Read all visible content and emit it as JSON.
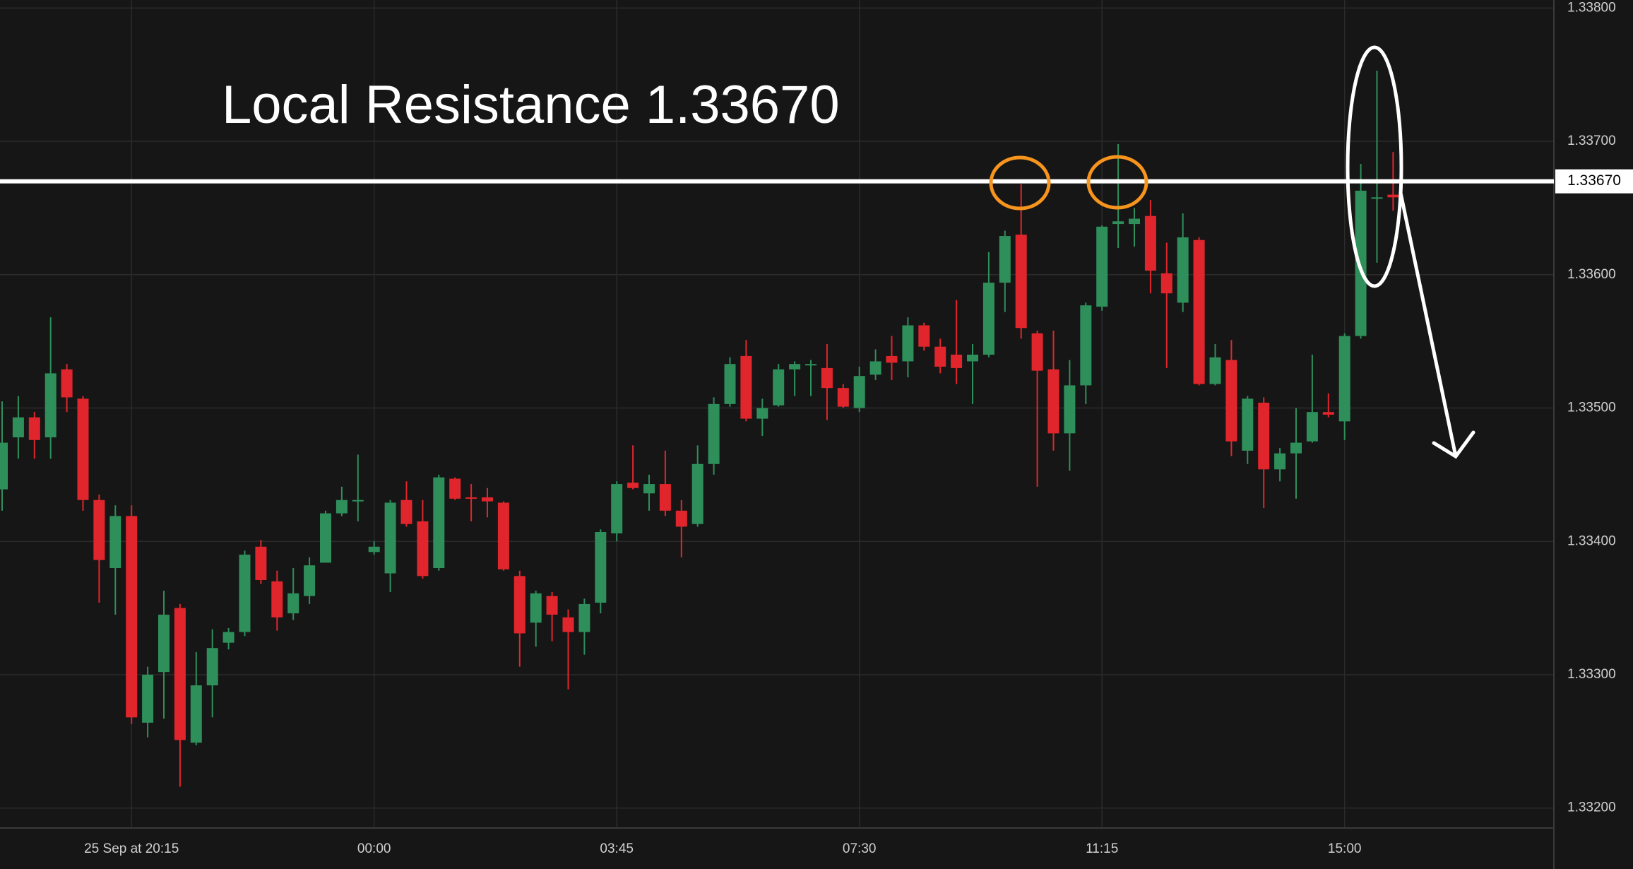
{
  "chart_data": {
    "type": "candlestick",
    "annotation": "Local Resistance 1.33670",
    "resistance": {
      "value": 1.3367,
      "label": "1.33670"
    },
    "categories": [
      null,
      null,
      null,
      null,
      null,
      null,
      null,
      null,
      "25 Sep at 20:15",
      null,
      null,
      null,
      null,
      null,
      null,
      null,
      null,
      null,
      null,
      null,
      null,
      null,
      null,
      "00:00",
      null,
      null,
      null,
      null,
      null,
      null,
      null,
      null,
      null,
      null,
      null,
      null,
      null,
      null,
      "03:45",
      null,
      null,
      null,
      null,
      null,
      null,
      null,
      null,
      null,
      null,
      null,
      null,
      null,
      null,
      "07:30",
      null,
      null,
      null,
      null,
      null,
      null,
      null,
      null,
      null,
      null,
      null,
      null,
      null,
      null,
      "11:15",
      null,
      null,
      null,
      null,
      null,
      null,
      null,
      null,
      null,
      null,
      null,
      null,
      null,
      null,
      "15:00",
      null,
      null,
      null
    ],
    "open": [
      1.33439,
      1.33478,
      1.33493,
      1.33478,
      1.33529,
      1.33507,
      1.33431,
      1.3338,
      1.33419,
      1.33264,
      1.33302,
      1.3335,
      1.33249,
      1.33292,
      1.33324,
      1.33332,
      1.33396,
      1.3337,
      1.33346,
      1.33359,
      1.33384,
      1.33421,
      1.3343,
      1.33392,
      1.33376,
      1.33431,
      1.33415,
      1.3338,
      1.33447,
      1.33433,
      1.33433,
      1.33429,
      1.33374,
      1.33339,
      1.33359,
      1.33343,
      1.33332,
      1.33354,
      1.33406,
      1.33444,
      1.33436,
      1.33443,
      1.33423,
      1.33413,
      1.33458,
      1.33503,
      1.33539,
      1.33492,
      1.33502,
      1.33529,
      1.33532,
      1.3353,
      1.33515,
      1.335,
      1.33525,
      1.33539,
      1.33535,
      1.33562,
      1.33546,
      1.3354,
      1.33535,
      1.3354,
      1.33594,
      1.3363,
      1.33556,
      1.33529,
      1.33481,
      1.33517,
      1.33576,
      1.33638,
      1.33638,
      1.33644,
      1.33601,
      1.33579,
      1.33626,
      1.33518,
      1.33536,
      1.33468,
      1.33504,
      1.33454,
      1.33466,
      1.33475,
      1.33497,
      1.3349,
      1.33554,
      1.33657,
      1.3366
    ],
    "high": [
      1.33505,
      1.33509,
      1.33497,
      1.33568,
      1.33533,
      1.33509,
      1.33435,
      1.33427,
      1.33427,
      1.33306,
      1.33363,
      1.33353,
      1.33317,
      1.33334,
      1.33335,
      1.33393,
      1.33401,
      1.33378,
      1.3338,
      1.33388,
      1.33423,
      1.33441,
      1.33465,
      1.334,
      1.33431,
      1.33445,
      1.33431,
      1.3345,
      1.33448,
      1.33443,
      1.3344,
      1.3343,
      1.33378,
      1.33363,
      1.33362,
      1.33349,
      1.33357,
      1.33409,
      1.33445,
      1.33472,
      1.3345,
      1.33468,
      1.33431,
      1.33472,
      1.33508,
      1.33538,
      1.33551,
      1.33507,
      1.33533,
      1.33535,
      1.33536,
      1.33548,
      1.33518,
      1.33531,
      1.33544,
      1.33554,
      1.33568,
      1.33564,
      1.33552,
      1.33581,
      1.33548,
      1.33617,
      1.33633,
      1.33668,
      1.33558,
      1.33558,
      1.33536,
      1.33579,
      1.33637,
      1.33698,
      1.3365,
      1.33656,
      1.33624,
      1.33646,
      1.33628,
      1.33548,
      1.33551,
      1.33509,
      1.33508,
      1.3347,
      1.335,
      1.3354,
      1.33511,
      1.33556,
      1.33683,
      1.33753,
      1.33692
    ],
    "low": [
      1.33423,
      1.33462,
      1.33462,
      1.33462,
      1.33497,
      1.33423,
      1.33354,
      1.33345,
      1.33263,
      1.33253,
      1.33267,
      1.33216,
      1.33247,
      1.33268,
      1.33319,
      1.33329,
      1.33368,
      1.33333,
      1.33341,
      1.33353,
      1.33384,
      1.33419,
      1.33415,
      1.3339,
      1.33362,
      1.33411,
      1.33372,
      1.33378,
      1.33431,
      1.33415,
      1.33418,
      1.33378,
      1.33306,
      1.33321,
      1.33325,
      1.33289,
      1.33315,
      1.33346,
      1.334,
      1.33439,
      1.33423,
      1.33419,
      1.33388,
      1.33411,
      1.3345,
      1.33501,
      1.3349,
      1.33479,
      1.33501,
      1.33509,
      1.33509,
      1.33491,
      1.335,
      1.33497,
      1.33521,
      1.33521,
      1.33523,
      1.33543,
      1.33526,
      1.33518,
      1.33503,
      1.33538,
      1.33572,
      1.33552,
      1.33441,
      1.33468,
      1.33453,
      1.33503,
      1.33573,
      1.3362,
      1.33621,
      1.33586,
      1.3353,
      1.33572,
      1.33517,
      1.33517,
      1.33464,
      1.33458,
      1.33425,
      1.33445,
      1.33432,
      1.33474,
      1.33493,
      1.33476,
      1.33552,
      1.33609,
      1.33648
    ],
    "close": [
      1.33474,
      1.33493,
      1.33476,
      1.33526,
      1.33508,
      1.33431,
      1.33386,
      1.33419,
      1.33268,
      1.333,
      1.33345,
      1.33251,
      1.33292,
      1.3332,
      1.33332,
      1.3339,
      1.33371,
      1.33343,
      1.33361,
      1.33382,
      1.33421,
      1.33431,
      1.33431,
      1.33396,
      1.33429,
      1.33413,
      1.33374,
      1.33448,
      1.33432,
      1.33432,
      1.3343,
      1.33379,
      1.33331,
      1.33361,
      1.33345,
      1.33332,
      1.33353,
      1.33407,
      1.33443,
      1.3344,
      1.33443,
      1.33423,
      1.33411,
      1.33458,
      1.33503,
      1.33533,
      1.33492,
      1.335,
      1.33529,
      1.33533,
      1.33533,
      1.33515,
      1.33501,
      1.33524,
      1.33535,
      1.33534,
      1.33562,
      1.33546,
      1.33531,
      1.3353,
      1.3354,
      1.33594,
      1.33629,
      1.3356,
      1.33528,
      1.33481,
      1.33517,
      1.33577,
      1.33636,
      1.3364,
      1.33642,
      1.33603,
      1.33586,
      1.33628,
      1.33518,
      1.33538,
      1.33475,
      1.33507,
      1.33454,
      1.33466,
      1.33474,
      1.33497,
      1.33495,
      1.33554,
      1.33663,
      1.33658,
      1.33658
    ],
    "up_color": "#2f8f5b",
    "down_color": "#e0262c",
    "ylim": [
      1.33185,
      1.33806
    ],
    "yticks": [
      {
        "value": 1.332,
        "label": "1.33200"
      },
      {
        "value": 1.333,
        "label": "1.33300"
      },
      {
        "value": 1.334,
        "label": "1.33400"
      },
      {
        "value": 1.335,
        "label": "1.33500"
      },
      {
        "value": 1.336,
        "label": "1.33600"
      },
      {
        "value": 1.337,
        "label": "1.33700"
      },
      {
        "value": 1.338,
        "label": "1.33800"
      }
    ],
    "grid": true
  }
}
